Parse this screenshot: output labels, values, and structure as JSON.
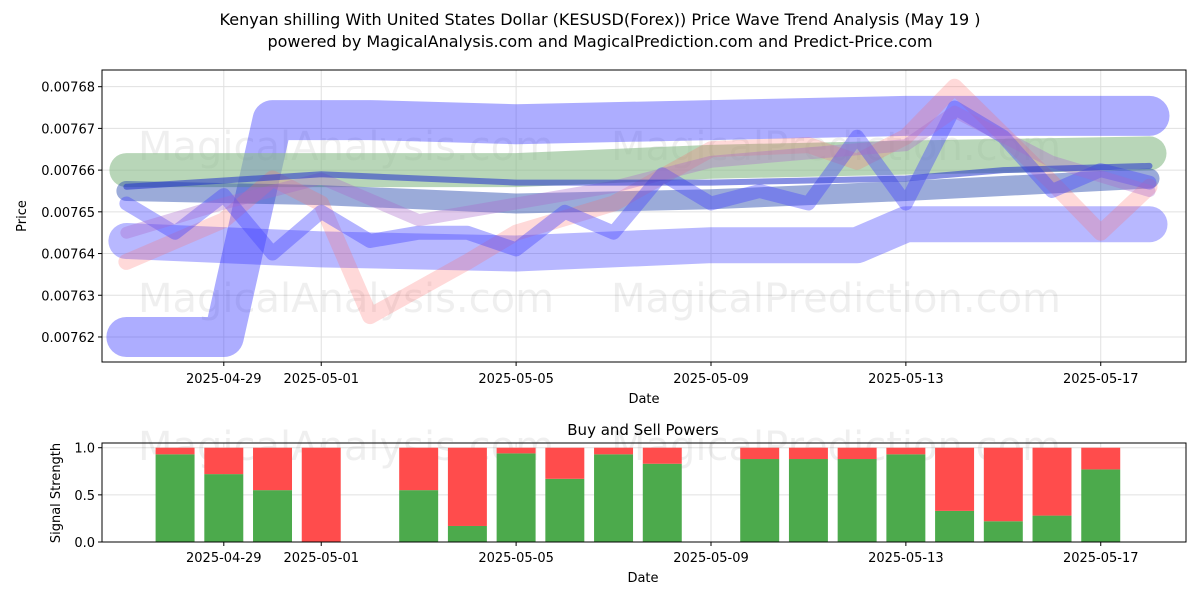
{
  "chart_data": [
    {
      "type": "line",
      "title_line1": "Kenyan shilling With United States Dollar (KESUSD(Forex)) Price Wave Trend Analysis (May 19 )",
      "title_line2": "powered by MagicalAnalysis.com and MagicalPrediction.com and Predict-Price.com",
      "xlabel": "Date",
      "ylabel": "Price",
      "x_ticks": [
        "2025-04-29",
        "2025-05-01",
        "2025-05-05",
        "2025-05-09",
        "2025-05-13",
        "2025-05-17"
      ],
      "y_ticks": [
        "0.00762",
        "0.00763",
        "0.00764",
        "0.00765",
        "0.00766",
        "0.00767",
        "0.00768"
      ],
      "ylim": [
        0.007614,
        0.007684
      ],
      "xlim": [
        "2025-04-26T12:00",
        "2025-05-18T18:00"
      ],
      "grid": true,
      "watermarks": [
        "MagicalAnalysis.com",
        "MagicalPrediction.com",
        "MagicalAnalysis.com",
        "MagicalPrediction.com"
      ],
      "series": [
        {
          "color": "#3333ff",
          "opacity": 0.4,
          "width": 40,
          "x": [
            "2025-04-27",
            "2025-04-28",
            "2025-04-29",
            "2025-04-30",
            "2025-05-02",
            "2025-05-05",
            "2025-05-09",
            "2025-05-13",
            "2025-05-18"
          ],
          "y": [
            0.00762,
            0.00762,
            0.00762,
            0.007672,
            0.007672,
            0.007671,
            0.007672,
            0.007673,
            0.007673
          ]
        },
        {
          "color": "#3333ff",
          "opacity": 0.35,
          "width": 36,
          "x": [
            "2025-04-27",
            "2025-05-01",
            "2025-05-05",
            "2025-05-09",
            "2025-05-12",
            "2025-05-13",
            "2025-05-14",
            "2025-05-18"
          ],
          "y": [
            0.007643,
            0.007641,
            0.00764,
            0.007642,
            0.007642,
            0.007647,
            0.007647,
            0.007647
          ]
        },
        {
          "color": "#88bb88",
          "opacity": 0.6,
          "width": 34,
          "x": [
            "2025-04-27",
            "2025-05-01",
            "2025-05-05",
            "2025-05-09",
            "2025-05-13",
            "2025-05-18"
          ],
          "y": [
            0.00766,
            0.00766,
            0.00766,
            0.007662,
            0.007663,
            0.007664
          ]
        },
        {
          "color": "#2244aa",
          "opacity": 0.45,
          "width": 20,
          "x": [
            "2025-04-27",
            "2025-05-01",
            "2025-05-05",
            "2025-05-09",
            "2025-05-13",
            "2025-05-18"
          ],
          "y": [
            0.007655,
            0.007654,
            0.007652,
            0.007653,
            0.007655,
            0.007658
          ]
        },
        {
          "color": "#ff6666",
          "opacity": 0.25,
          "width": 16,
          "x": [
            "2025-04-27",
            "2025-04-29",
            "2025-04-30",
            "2025-05-01",
            "2025-05-02",
            "2025-05-04",
            "2025-05-05",
            "2025-05-07",
            "2025-05-09",
            "2025-05-11",
            "2025-05-12",
            "2025-05-13",
            "2025-05-14",
            "2025-05-16",
            "2025-05-17",
            "2025-05-18"
          ],
          "y": [
            0.007638,
            0.007648,
            0.007658,
            0.007652,
            0.007625,
            0.007638,
            0.007645,
            0.007652,
            0.007665,
            0.007666,
            0.007662,
            0.007668,
            0.00768,
            0.007657,
            0.007645,
            0.007656
          ]
        },
        {
          "color": "#4444ff",
          "opacity": 0.4,
          "width": 14,
          "x": [
            "2025-04-27",
            "2025-04-28",
            "2025-04-29",
            "2025-04-30",
            "2025-05-01",
            "2025-05-02",
            "2025-05-03",
            "2025-05-04",
            "2025-05-05",
            "2025-05-06",
            "2025-05-07",
            "2025-05-08",
            "2025-05-09",
            "2025-05-10",
            "2025-05-11",
            "2025-05-12",
            "2025-05-13",
            "2025-05-14",
            "2025-05-15",
            "2025-05-16",
            "2025-05-17",
            "2025-05-18"
          ],
          "y": [
            0.007652,
            0.007645,
            0.007654,
            0.00764,
            0.00765,
            0.007643,
            0.007645,
            0.007645,
            0.007641,
            0.00765,
            0.007645,
            0.007659,
            0.007652,
            0.007655,
            0.007652,
            0.007668,
            0.007652,
            0.007675,
            0.007668,
            0.007655,
            0.00766,
            0.007657
          ]
        },
        {
          "color": "#aa66cc",
          "opacity": 0.35,
          "width": 12,
          "x": [
            "2025-04-27",
            "2025-04-29",
            "2025-05-01",
            "2025-05-03",
            "2025-05-05",
            "2025-05-07",
            "2025-05-09",
            "2025-05-11",
            "2025-05-13",
            "2025-05-14",
            "2025-05-16",
            "2025-05-18"
          ],
          "y": [
            0.007645,
            0.007652,
            0.007658,
            0.007648,
            0.007652,
            0.007656,
            0.007662,
            0.007664,
            0.007666,
            0.007674,
            0.007662,
            0.007655
          ]
        },
        {
          "color": "#2233cc",
          "opacity": 0.55,
          "width": 6,
          "x": [
            "2025-04-27",
            "2025-05-01",
            "2025-05-05",
            "2025-05-09",
            "2025-05-13",
            "2025-05-15",
            "2025-05-18"
          ],
          "y": [
            0.007656,
            0.007659,
            0.007657,
            0.007657,
            0.007658,
            0.00766,
            0.007661
          ]
        }
      ]
    },
    {
      "type": "bar",
      "title": "Buy and Sell Powers",
      "xlabel": "Date",
      "ylabel": "Signal Strength",
      "ylim": [
        0,
        1.05
      ],
      "y_ticks": [
        "0.0",
        "0.5",
        "1.0"
      ],
      "x_ticks": [
        "2025-04-29",
        "2025-05-01",
        "2025-05-05",
        "2025-05-09",
        "2025-05-13",
        "2025-05-17"
      ],
      "xlim": [
        "2025-04-26T12:00",
        "2025-05-18T18:00"
      ],
      "grid": true,
      "buy_color": "#4caa4c",
      "sell_color": "#ff4c4c",
      "bars": [
        {
          "date": "2025-04-28",
          "buy": 0.93
        },
        {
          "date": "2025-04-29",
          "buy": 0.72
        },
        {
          "date": "2025-04-30",
          "buy": 0.55
        },
        {
          "date": "2025-05-01",
          "buy": 0.0
        },
        {
          "date": "2025-05-03",
          "buy": 0.55
        },
        {
          "date": "2025-05-04",
          "buy": 0.17
        },
        {
          "date": "2025-05-05",
          "buy": 0.94
        },
        {
          "date": "2025-05-06",
          "buy": 0.67
        },
        {
          "date": "2025-05-07",
          "buy": 0.93
        },
        {
          "date": "2025-05-08",
          "buy": 0.83
        },
        {
          "date": "2025-05-10",
          "buy": 0.88
        },
        {
          "date": "2025-05-11",
          "buy": 0.88
        },
        {
          "date": "2025-05-12",
          "buy": 0.88
        },
        {
          "date": "2025-05-13",
          "buy": 0.93
        },
        {
          "date": "2025-05-14",
          "buy": 0.33
        },
        {
          "date": "2025-05-15",
          "buy": 0.22
        },
        {
          "date": "2025-05-16",
          "buy": 0.28
        },
        {
          "date": "2025-05-17",
          "buy": 0.77
        }
      ],
      "watermarks": [
        "MagicalAnalysis.com",
        "MagicalPrediction.com"
      ]
    }
  ]
}
